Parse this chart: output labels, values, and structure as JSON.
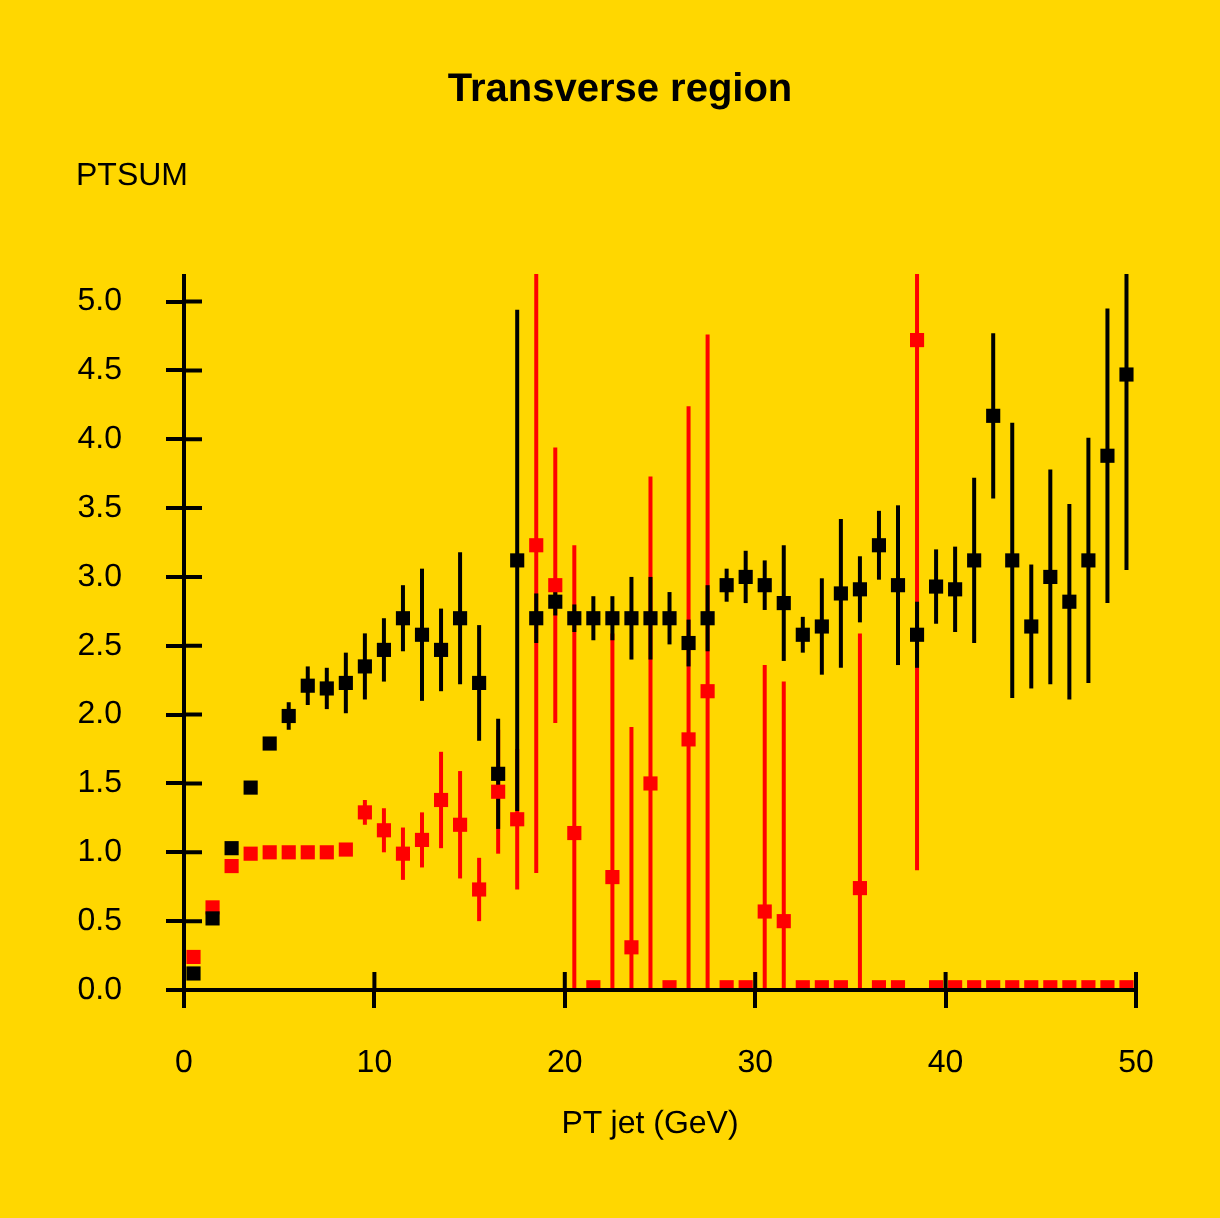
{
  "chart_data": {
    "type": "scatter",
    "title": "Transverse region",
    "xlabel": "PT jet (GeV)",
    "ylabel": "PTSUM",
    "x": [
      0.5,
      1.5,
      2.5,
      3.5,
      4.5,
      5.5,
      6.5,
      7.5,
      8.5,
      9.5,
      10.5,
      11.5,
      12.5,
      13.5,
      14.5,
      15.5,
      16.5,
      17.5,
      18.5,
      19.5,
      20.5,
      21.5,
      22.5,
      23.5,
      24.5,
      25.5,
      26.5,
      27.5,
      28.5,
      29.5,
      30.5,
      31.5,
      32.5,
      33.5,
      34.5,
      35.5,
      36.5,
      37.5,
      38.5,
      39.5,
      40.5,
      41.5,
      42.5,
      43.5,
      44.5,
      45.5,
      46.5,
      47.5,
      48.5,
      49.5
    ],
    "series": [
      {
        "color": "#000000",
        "values": [
          0.12,
          0.52,
          1.03,
          1.47,
          1.79,
          1.99,
          2.21,
          2.19,
          2.23,
          2.35,
          2.47,
          2.7,
          2.58,
          2.47,
          2.7,
          2.23,
          1.57,
          3.12,
          2.7,
          2.82,
          2.7,
          2.7,
          2.7,
          2.7,
          2.7,
          2.7,
          2.52,
          2.7,
          2.94,
          3.0,
          2.94,
          2.81,
          2.58,
          2.64,
          2.88,
          2.91,
          3.23,
          2.94,
          2.58,
          2.93,
          2.91,
          3.12,
          4.17,
          3.12,
          2.64,
          3.0,
          2.82,
          3.12,
          3.88,
          4.47
        ],
        "errors": [
          null,
          null,
          null,
          null,
          null,
          0.1,
          0.14,
          0.15,
          0.22,
          0.24,
          0.23,
          0.24,
          0.48,
          0.3,
          0.48,
          0.42,
          0.4,
          1.82,
          0.18,
          0.1,
          0.1,
          0.16,
          0.16,
          0.3,
          0.3,
          0.19,
          0.17,
          0.24,
          0.12,
          0.19,
          0.18,
          0.42,
          0.13,
          0.35,
          0.54,
          0.24,
          0.25,
          0.58,
          0.24,
          0.27,
          0.31,
          0.6,
          0.6,
          1.0,
          0.45,
          0.78,
          0.71,
          0.89,
          1.07,
          [
            3.05,
            5.2
          ]
        ]
      },
      {
        "color": "#ff0000",
        "values": [
          0.24,
          0.6,
          0.9,
          0.99,
          1.0,
          1.0,
          1.0,
          1.0,
          1.02,
          1.29,
          1.16,
          0.99,
          1.09,
          1.38,
          1.2,
          0.73,
          1.44,
          1.24,
          3.23,
          2.94,
          1.14,
          0.02,
          0.82,
          0.31,
          1.5,
          0.02,
          1.82,
          2.17,
          0.02,
          0.02,
          0.57,
          0.5,
          0.02,
          0.02,
          0.02,
          0.74,
          0.02,
          0.02,
          4.72,
          0.02,
          0.02,
          0.02,
          0.02,
          0.02,
          0.02,
          0.02,
          0.02,
          0.02,
          0.02,
          0.02
        ],
        "errors": [
          null,
          null,
          null,
          null,
          null,
          null,
          null,
          null,
          null,
          0.09,
          0.16,
          0.19,
          0.2,
          0.35,
          0.39,
          0.23,
          0.45,
          0.51,
          [
            0.85,
            5.2
          ],
          1.0,
          [
            0,
            3.23
          ],
          null,
          [
            0,
            2.59
          ],
          [
            0,
            1.91
          ],
          [
            0,
            3.73
          ],
          null,
          [
            0,
            4.24
          ],
          [
            0,
            4.76
          ],
          null,
          null,
          [
            0,
            2.36
          ],
          [
            0,
            2.24
          ],
          null,
          null,
          null,
          [
            0,
            2.59
          ],
          null,
          null,
          [
            0.87,
            5.2
          ],
          null,
          null,
          null,
          null,
          null,
          null,
          null,
          null,
          null,
          null,
          null
        ]
      }
    ],
    "xlim": [
      0,
      50
    ],
    "xticks": [
      0,
      10,
      20,
      30,
      40,
      50
    ],
    "ylim": [
      0,
      5.2
    ],
    "yticks": [
      {
        "value": 0,
        "label": "0.0"
      },
      {
        "value": 0.5,
        "label": "0.5"
      },
      {
        "value": 1,
        "label": "1.0"
      },
      {
        "value": 1.5,
        "label": "1.5"
      },
      {
        "value": 2,
        "label": "2.0"
      },
      {
        "value": 2.5,
        "label": "2.5"
      },
      {
        "value": 3,
        "label": "3.0"
      },
      {
        "value": 3.5,
        "label": "3.5"
      },
      {
        "value": 4,
        "label": "4.0"
      },
      {
        "value": 4.5,
        "label": "4.5"
      },
      {
        "value": 5,
        "label": "5.0"
      }
    ],
    "grid": false,
    "legend": false,
    "marker": "square"
  }
}
